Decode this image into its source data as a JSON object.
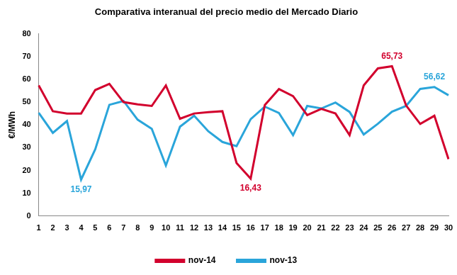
{
  "chart_data": {
    "type": "line",
    "title": "Comparativa interanual del precio medio del Mercado Diario",
    "y_label": "€/MWh",
    "categories": [
      "1",
      "2",
      "3",
      "4",
      "5",
      "6",
      "7",
      "8",
      "9",
      "10",
      "11",
      "12",
      "13",
      "14",
      "15",
      "16",
      "17",
      "18",
      "19",
      "20",
      "21",
      "22",
      "23",
      "24",
      "25",
      "26",
      "27",
      "28",
      "29",
      "30"
    ],
    "series": [
      {
        "name": "nov-14",
        "color": "#d2002d",
        "values": [
          57.3,
          46,
          45,
          45,
          55.3,
          58,
          50,
          49,
          48.3,
          57.3,
          42.7,
          45,
          45.6,
          46,
          23.3,
          16.43,
          48.7,
          55.7,
          52.6,
          44.3,
          47,
          45,
          35.5,
          57.3,
          64.8,
          65.73,
          48.5,
          40.4,
          44,
          25
        ]
      },
      {
        "name": "nov-13",
        "color": "#2aa5da",
        "values": [
          45.3,
          36.5,
          41.7,
          15.97,
          29.3,
          48.8,
          50.5,
          42.3,
          38.3,
          22.2,
          39.2,
          44,
          37.2,
          32.5,
          30.7,
          42.5,
          48,
          45.2,
          35.5,
          48.3,
          47.2,
          49.8,
          45.7,
          35.8,
          40.5,
          45.8,
          48.3,
          55.8,
          56.62,
          53
        ]
      }
    ],
    "annotations": [
      {
        "series": "nov-14",
        "category": "26",
        "value": 65.73,
        "text": "65,73"
      },
      {
        "series": "nov-14",
        "category": "16",
        "value": 16.43,
        "text": "16,43"
      },
      {
        "series": "nov-13",
        "category": "4",
        "value": 15.97,
        "text": "15,97"
      },
      {
        "series": "nov-13",
        "category": "29",
        "value": 56.62,
        "text": "56,62"
      }
    ],
    "ylim": [
      0,
      80
    ],
    "yticks": [
      0,
      10,
      20,
      30,
      40,
      50,
      60,
      70,
      80
    ],
    "grid": false,
    "legend": "bottom"
  }
}
